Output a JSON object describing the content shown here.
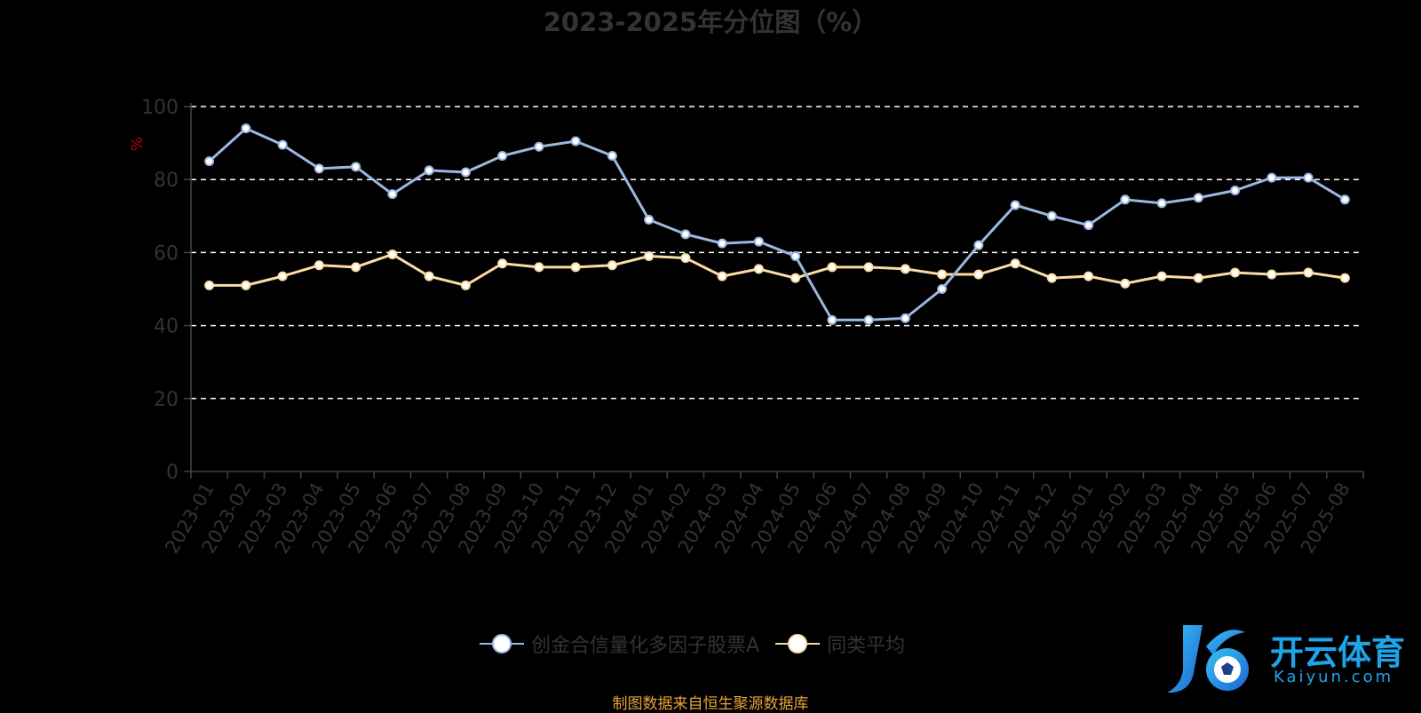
{
  "chart_data": {
    "type": "line",
    "title": "2023-2025年分位图（%）",
    "ylabel": "%",
    "xlabel": "",
    "ylim": [
      0,
      100
    ],
    "yticks": [
      0,
      20,
      40,
      60,
      80,
      100
    ],
    "grid": true,
    "legend_position": "bottom",
    "categories": [
      "2023-01",
      "2023-02",
      "2023-03",
      "2023-04",
      "2023-05",
      "2023-06",
      "2023-07",
      "2023-08",
      "2023-09",
      "2023-10",
      "2023-11",
      "2023-12",
      "2024-01",
      "2024-02",
      "2024-03",
      "2024-04",
      "2024-05",
      "2024-06",
      "2024-07",
      "2024-08",
      "2024-09",
      "2024-10",
      "2024-11",
      "2024-12",
      "2025-01",
      "2025-02",
      "2025-03",
      "2025-04",
      "2025-05",
      "2025-06",
      "2025-07",
      "2025-08"
    ],
    "series": [
      {
        "name": "创金合信量化多因子股票A",
        "color": "#9ab8e0",
        "values": [
          85,
          94,
          89.5,
          83,
          83.5,
          76,
          82.5,
          82,
          86.5,
          89,
          90.5,
          86.5,
          69,
          65,
          62.5,
          63,
          59,
          41.5,
          41.5,
          42,
          50,
          62,
          73,
          70,
          67.5,
          74.5,
          73.5,
          75,
          77,
          80.5,
          80.5,
          74.5
        ]
      },
      {
        "name": "同类平均",
        "color": "#fbdca4",
        "values": [
          51,
          51,
          53.5,
          56.5,
          56,
          59.5,
          53.5,
          51,
          57,
          56,
          56,
          56.5,
          59,
          58.5,
          53.5,
          55.5,
          53,
          56,
          56,
          55.5,
          54,
          54,
          57,
          53,
          53.5,
          51.5,
          53.5,
          53,
          54.5,
          54,
          54.5,
          53
        ]
      }
    ]
  },
  "source_note": "制图数据来自恒生聚源数据库",
  "watermark": {
    "brand": "开云体育",
    "sub": "Kaiyun.com"
  },
  "colors": {
    "axis_text": "#333333",
    "ylabel": "#c00000",
    "grid": "#ffffff",
    "source": "#e8a23a"
  }
}
